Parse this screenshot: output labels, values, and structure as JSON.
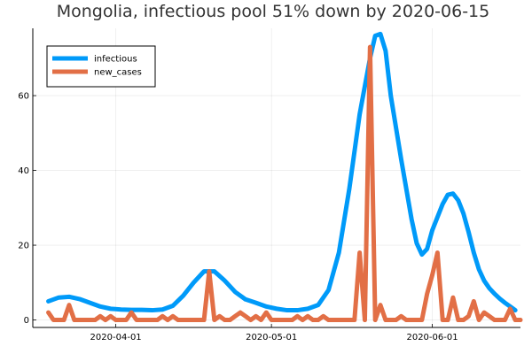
{
  "chart_data": {
    "type": "line",
    "title": "Mongolia, infectious pool 51% down by 2020-06-15",
    "xlabel": "",
    "ylabel": "",
    "x_axis": {
      "type": "date",
      "range": [
        "2020-03-16",
        "2020-06-18"
      ],
      "ticks": [
        "2020-04-01",
        "2020-05-01",
        "2020-06-01"
      ]
    },
    "ylim": [
      -2,
      78
    ],
    "y_ticks": [
      0,
      20,
      40,
      60
    ],
    "grid": true,
    "legend_position": "top-left",
    "colors": {
      "infectious": "#009af9",
      "new_cases": "#e26f46"
    },
    "series": [
      {
        "name": "infectious",
        "points": [
          [
            "2020-03-19",
            5.0
          ],
          [
            "2020-03-21",
            6.0
          ],
          [
            "2020-03-23",
            6.2
          ],
          [
            "2020-03-25",
            5.6
          ],
          [
            "2020-03-27",
            4.6
          ],
          [
            "2020-03-29",
            3.6
          ],
          [
            "2020-03-31",
            3.0
          ],
          [
            "2020-04-02",
            2.8
          ],
          [
            "2020-04-04",
            2.7
          ],
          [
            "2020-04-06",
            2.7
          ],
          [
            "2020-04-08",
            2.6
          ],
          [
            "2020-04-10",
            2.8
          ],
          [
            "2020-04-12",
            3.8
          ],
          [
            "2020-04-14",
            6.5
          ],
          [
            "2020-04-16",
            10.0
          ],
          [
            "2020-04-18",
            13.0
          ],
          [
            "2020-04-20",
            13.0
          ],
          [
            "2020-04-22",
            10.5
          ],
          [
            "2020-04-24",
            7.5
          ],
          [
            "2020-04-26",
            5.5
          ],
          [
            "2020-04-28",
            4.6
          ],
          [
            "2020-04-30",
            3.6
          ],
          [
            "2020-05-02",
            3.0
          ],
          [
            "2020-05-04",
            2.6
          ],
          [
            "2020-05-06",
            2.6
          ],
          [
            "2020-05-08",
            3.0
          ],
          [
            "2020-05-10",
            4.0
          ],
          [
            "2020-05-12",
            8.0
          ],
          [
            "2020-05-14",
            18.0
          ],
          [
            "2020-05-16",
            35.0
          ],
          [
            "2020-05-18",
            55.0
          ],
          [
            "2020-05-20",
            70.0
          ],
          [
            "2020-05-21",
            76.0
          ],
          [
            "2020-05-22",
            76.5
          ],
          [
            "2020-05-23",
            72.0
          ],
          [
            "2020-05-24",
            60.0
          ],
          [
            "2020-05-26",
            43.0
          ],
          [
            "2020-05-28",
            27.0
          ],
          [
            "2020-05-29",
            20.5
          ],
          [
            "2020-05-30",
            17.5
          ],
          [
            "2020-05-31",
            19.0
          ],
          [
            "2020-06-01",
            24.0
          ],
          [
            "2020-06-03",
            31.0
          ],
          [
            "2020-06-04",
            33.5
          ],
          [
            "2020-06-05",
            33.8
          ],
          [
            "2020-06-06",
            32.0
          ],
          [
            "2020-06-07",
            28.5
          ],
          [
            "2020-06-08",
            23.5
          ],
          [
            "2020-06-09",
            18.0
          ],
          [
            "2020-06-10",
            13.5
          ],
          [
            "2020-06-11",
            10.5
          ],
          [
            "2020-06-12",
            8.5
          ],
          [
            "2020-06-13",
            7.0
          ],
          [
            "2020-06-14",
            5.7
          ],
          [
            "2020-06-15",
            4.6
          ],
          [
            "2020-06-16",
            3.6
          ],
          [
            "2020-06-17",
            2.6
          ]
        ]
      },
      {
        "name": "new_cases",
        "points": [
          [
            "2020-03-19",
            2
          ],
          [
            "2020-03-20",
            0
          ],
          [
            "2020-03-21",
            0
          ],
          [
            "2020-03-22",
            0
          ],
          [
            "2020-03-23",
            4
          ],
          [
            "2020-03-24",
            0
          ],
          [
            "2020-03-25",
            0
          ],
          [
            "2020-03-26",
            0
          ],
          [
            "2020-03-27",
            0
          ],
          [
            "2020-03-28",
            0
          ],
          [
            "2020-03-29",
            1
          ],
          [
            "2020-03-30",
            0
          ],
          [
            "2020-03-31",
            1
          ],
          [
            "2020-04-01",
            0
          ],
          [
            "2020-04-02",
            0
          ],
          [
            "2020-04-03",
            0
          ],
          [
            "2020-04-04",
            2
          ],
          [
            "2020-04-05",
            0
          ],
          [
            "2020-04-06",
            0
          ],
          [
            "2020-04-07",
            0
          ],
          [
            "2020-04-08",
            0
          ],
          [
            "2020-04-09",
            0
          ],
          [
            "2020-04-10",
            1
          ],
          [
            "2020-04-11",
            0
          ],
          [
            "2020-04-12",
            1
          ],
          [
            "2020-04-13",
            0
          ],
          [
            "2020-04-14",
            0
          ],
          [
            "2020-04-15",
            0
          ],
          [
            "2020-04-16",
            0
          ],
          [
            "2020-04-17",
            0
          ],
          [
            "2020-04-18",
            0
          ],
          [
            "2020-04-19",
            13
          ],
          [
            "2020-04-20",
            0
          ],
          [
            "2020-04-21",
            1
          ],
          [
            "2020-04-22",
            0
          ],
          [
            "2020-04-23",
            0
          ],
          [
            "2020-04-24",
            1
          ],
          [
            "2020-04-25",
            2
          ],
          [
            "2020-04-26",
            1
          ],
          [
            "2020-04-27",
            0
          ],
          [
            "2020-04-28",
            1
          ],
          [
            "2020-04-29",
            0
          ],
          [
            "2020-04-30",
            2
          ],
          [
            "2020-05-01",
            0
          ],
          [
            "2020-05-02",
            0
          ],
          [
            "2020-05-03",
            0
          ],
          [
            "2020-05-04",
            0
          ],
          [
            "2020-05-05",
            0
          ],
          [
            "2020-05-06",
            1
          ],
          [
            "2020-05-07",
            0
          ],
          [
            "2020-05-08",
            1
          ],
          [
            "2020-05-09",
            0
          ],
          [
            "2020-05-10",
            0
          ],
          [
            "2020-05-11",
            1
          ],
          [
            "2020-05-12",
            0
          ],
          [
            "2020-05-13",
            0
          ],
          [
            "2020-05-14",
            0
          ],
          [
            "2020-05-15",
            0
          ],
          [
            "2020-05-16",
            0
          ],
          [
            "2020-05-17",
            0
          ],
          [
            "2020-05-18",
            18
          ],
          [
            "2020-05-19",
            0
          ],
          [
            "2020-05-20",
            73
          ],
          [
            "2020-05-21",
            0
          ],
          [
            "2020-05-22",
            4
          ],
          [
            "2020-05-23",
            0
          ],
          [
            "2020-05-24",
            0
          ],
          [
            "2020-05-25",
            0
          ],
          [
            "2020-05-26",
            1
          ],
          [
            "2020-05-27",
            0
          ],
          [
            "2020-05-28",
            0
          ],
          [
            "2020-05-29",
            0
          ],
          [
            "2020-05-30",
            0
          ],
          [
            "2020-05-31",
            7
          ],
          [
            "2020-06-01",
            12
          ],
          [
            "2020-06-02",
            18
          ],
          [
            "2020-06-03",
            0
          ],
          [
            "2020-06-04",
            0
          ],
          [
            "2020-06-05",
            6
          ],
          [
            "2020-06-06",
            0
          ],
          [
            "2020-06-07",
            0
          ],
          [
            "2020-06-08",
            1
          ],
          [
            "2020-06-09",
            5
          ],
          [
            "2020-06-10",
            0
          ],
          [
            "2020-06-11",
            2
          ],
          [
            "2020-06-12",
            1
          ],
          [
            "2020-06-13",
            0
          ],
          [
            "2020-06-14",
            0
          ],
          [
            "2020-06-15",
            0
          ],
          [
            "2020-06-16",
            3
          ],
          [
            "2020-06-17",
            0
          ],
          [
            "2020-06-18",
            0
          ]
        ]
      }
    ]
  }
}
